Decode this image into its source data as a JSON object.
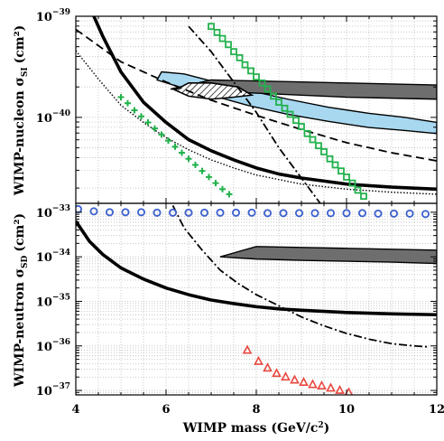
{
  "chart_data": [
    {
      "type": "line",
      "panel": "top",
      "ylabel": "WIMP-nucleon σ",
      "ylabel_sub": "SI",
      "ylabel_unit": "(cm²)",
      "xlim": [
        4,
        12
      ],
      "ylim_log10": [
        -40.85,
        -39
      ],
      "x_ticks": [
        4,
        6,
        8,
        10,
        12
      ],
      "y_tick_labels": [
        {
          "exp": -39,
          "base": "10",
          "sup": "−39"
        },
        {
          "exp": -40,
          "base": "10",
          "sup": "−40"
        }
      ],
      "grid": true,
      "series": [
        {
          "style": "solid-thick",
          "color": "#000000",
          "x": [
            4.3,
            4.6,
            5.0,
            5.5,
            6.0,
            6.5,
            7.0,
            7.5,
            8.0,
            8.5,
            9.0,
            10.0,
            11.0,
            12.0
          ],
          "log10y": [
            -38.9,
            -39.2,
            -39.55,
            -39.85,
            -40.05,
            -40.22,
            -40.33,
            -40.42,
            -40.5,
            -40.56,
            -40.6,
            -40.66,
            -40.69,
            -40.71
          ]
        },
        {
          "style": "dotted",
          "color": "#000000",
          "x": [
            4.0,
            4.5,
            5.0,
            5.5,
            6.0,
            6.5,
            7.0,
            7.5,
            8.0,
            9.0,
            10.0,
            11.0,
            12.0
          ],
          "log10y": [
            -39.34,
            -39.62,
            -39.88,
            -40.05,
            -40.2,
            -40.32,
            -40.42,
            -40.5,
            -40.57,
            -40.66,
            -40.71,
            -40.74,
            -40.76
          ]
        },
        {
          "style": "dashed",
          "color": "#000000",
          "x": [
            4.0,
            5.0,
            6.0,
            7.0,
            8.0,
            9.0,
            10.0,
            11.0,
            12.0
          ],
          "log10y": [
            -39.13,
            -39.45,
            -39.65,
            -39.83,
            -39.98,
            -40.12,
            -40.25,
            -40.35,
            -40.43
          ]
        },
        {
          "style": "dashdot",
          "color": "#000000",
          "x": [
            6.5,
            7.0,
            7.5,
            8.0,
            8.5,
            9.0,
            9.5
          ],
          "log10y": [
            -39.1,
            -39.35,
            -39.65,
            -39.95,
            -40.3,
            -40.6,
            -40.9
          ]
        },
        {
          "style": "marker-square",
          "color": "#22b14c",
          "x": [
            7.0,
            7.13,
            7.25,
            7.38,
            7.5,
            7.63,
            7.75,
            7.88,
            8.0,
            8.13,
            8.25,
            8.38,
            8.5,
            8.63,
            8.75,
            8.88,
            9.0,
            9.13,
            9.25,
            9.38,
            9.5,
            9.63,
            9.75,
            9.88,
            10.0,
            10.13,
            10.25,
            10.38
          ],
          "log10y": [
            -39.1,
            -39.16,
            -39.22,
            -39.28,
            -39.35,
            -39.41,
            -39.48,
            -39.54,
            -39.6,
            -39.66,
            -39.72,
            -39.79,
            -39.85,
            -39.91,
            -39.97,
            -40.03,
            -40.09,
            -40.16,
            -40.22,
            -40.28,
            -40.34,
            -40.41,
            -40.47,
            -40.53,
            -40.59,
            -40.65,
            -40.72,
            -40.78
          ]
        },
        {
          "style": "marker-plus",
          "color": "#22b14c",
          "x": [
            5.0,
            5.15,
            5.3,
            5.45,
            5.6,
            5.75,
            5.9,
            6.05,
            6.2,
            6.35,
            6.5,
            6.65,
            6.8,
            6.95,
            7.1,
            7.25,
            7.4
          ],
          "log10y": [
            -39.8,
            -39.86,
            -39.93,
            -39.99,
            -40.05,
            -40.11,
            -40.17,
            -40.23,
            -40.29,
            -40.35,
            -40.41,
            -40.47,
            -40.53,
            -40.59,
            -40.65,
            -40.71,
            -40.76
          ]
        }
      ],
      "regions": [
        {
          "style": "filled-lightblue",
          "color": "#a8d8f0",
          "x": [
            5.8,
            6.3,
            7.0,
            7.8,
            8.7,
            9.6,
            10.5,
            11.3,
            12.0,
            12.0,
            11.3,
            10.5,
            9.6,
            8.7,
            7.8,
            7.0,
            6.4,
            5.9,
            5.8
          ],
          "log10y": [
            -39.63,
            -39.7,
            -39.78,
            -39.88,
            -39.97,
            -40.04,
            -40.1,
            -40.13,
            -40.16,
            -40.05,
            -40.0,
            -39.96,
            -39.9,
            -39.82,
            -39.73,
            -39.64,
            -39.57,
            -39.55,
            -39.63
          ]
        },
        {
          "style": "filled-gray",
          "color": "#6e6e6e",
          "x": [
            6.1,
            7.0,
            8.0,
            9.0,
            10.0,
            11.0,
            12.0,
            12.0,
            11.0,
            10.0,
            9.0,
            8.0,
            7.0,
            6.1
          ],
          "log10y": [
            -39.72,
            -39.74,
            -39.76,
            -39.78,
            -39.8,
            -39.81,
            -39.82,
            -39.68,
            -39.67,
            -39.66,
            -39.65,
            -39.64,
            -39.63,
            -39.72
          ]
        },
        {
          "style": "hatched",
          "color": "#000000",
          "x": [
            6.2,
            6.5,
            7.0,
            7.5,
            7.9,
            7.6,
            7.0,
            6.5,
            6.2
          ],
          "log10y": [
            -39.73,
            -39.79,
            -39.82,
            -39.8,
            -39.78,
            -39.7,
            -39.66,
            -39.66,
            -39.73
          ]
        }
      ]
    },
    {
      "type": "line",
      "panel": "bottom",
      "xlabel": "WIMP mass (GeV/c²)",
      "ylabel": "WIMP-neutron σ",
      "ylabel_sub": "SD",
      "ylabel_unit": "(cm²)",
      "xlim": [
        4,
        12
      ],
      "ylim_log10": [
        -37.1,
        -32.8
      ],
      "x_ticks": [
        4,
        6,
        8,
        10,
        12
      ],
      "x_tick_labels": [
        "4",
        "6",
        "8",
        "10",
        "12"
      ],
      "y_tick_labels": [
        {
          "exp": -33,
          "base": "10",
          "sup": "−33"
        },
        {
          "exp": -34,
          "base": "10",
          "sup": "−34"
        },
        {
          "exp": -35,
          "base": "10",
          "sup": "−35"
        },
        {
          "exp": -36,
          "base": "10",
          "sup": "−36"
        },
        {
          "exp": -37,
          "base": "10",
          "sup": "−37"
        }
      ],
      "grid": true,
      "series": [
        {
          "style": "solid-thick",
          "color": "#000000",
          "x": [
            4.0,
            4.3,
            4.6,
            5.0,
            5.5,
            6.0,
            6.5,
            7.0,
            7.5,
            8.0,
            8.5,
            9.0,
            10.0,
            11.0,
            12.0
          ],
          "log10y": [
            -33.2,
            -33.65,
            -33.95,
            -34.25,
            -34.5,
            -34.7,
            -34.85,
            -34.97,
            -35.05,
            -35.12,
            -35.17,
            -35.2,
            -35.25,
            -35.28,
            -35.3
          ]
        },
        {
          "style": "dashdot",
          "color": "#000000",
          "x": [
            6.15,
            6.4,
            6.8,
            7.2,
            7.6,
            8.0,
            8.5,
            9.0,
            9.5,
            10.0,
            10.5,
            11.0,
            11.5,
            11.8
          ],
          "log10y": [
            -32.85,
            -33.35,
            -33.85,
            -34.3,
            -34.6,
            -34.85,
            -35.1,
            -35.35,
            -35.55,
            -35.72,
            -35.85,
            -35.95,
            -36.0,
            -36.02
          ]
        },
        {
          "style": "marker-circle",
          "color": "#3a5fcd",
          "x": [
            4.05,
            4.4,
            4.75,
            5.1,
            5.45,
            5.8,
            6.15,
            6.5,
            6.85,
            7.2,
            7.55,
            7.9,
            8.25,
            8.6,
            8.95,
            9.3,
            9.65,
            10.0,
            10.35,
            10.7,
            11.05,
            11.4,
            11.75
          ],
          "log10y": [
            -32.93,
            -32.98,
            -33.0,
            -33.0,
            -33.0,
            -33.01,
            -33.01,
            -33.01,
            -33.01,
            -33.01,
            -33.01,
            -33.01,
            -33.02,
            -33.02,
            -33.02,
            -33.02,
            -33.02,
            -33.02,
            -33.02,
            -33.03,
            -33.03,
            -33.03,
            -33.04
          ]
        },
        {
          "style": "marker-triangle",
          "color": "#e8473f",
          "x": [
            7.8,
            8.05,
            8.25,
            8.45,
            8.65,
            8.85,
            9.05,
            9.25,
            9.45,
            9.65,
            9.85,
            10.05
          ],
          "log10y": [
            -36.1,
            -36.35,
            -36.5,
            -36.62,
            -36.7,
            -36.77,
            -36.82,
            -36.87,
            -36.9,
            -36.95,
            -37.0,
            -37.05
          ]
        }
      ],
      "regions": [
        {
          "style": "filled-gray",
          "color": "#6e6e6e",
          "x": [
            7.2,
            8.0,
            9.0,
            10.0,
            11.0,
            12.0,
            12.0,
            11.0,
            10.0,
            9.0,
            8.0,
            7.2
          ],
          "log10y": [
            -34.0,
            -34.05,
            -34.08,
            -34.1,
            -34.12,
            -34.15,
            -33.85,
            -33.83,
            -33.81,
            -33.79,
            -33.77,
            -34.0
          ]
        }
      ]
    }
  ]
}
